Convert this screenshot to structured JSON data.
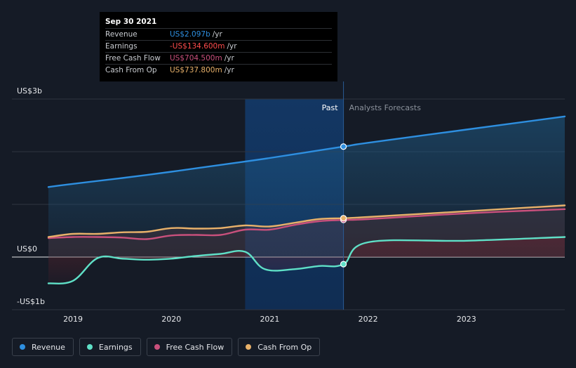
{
  "colors": {
    "revenue": "#2e8fe0",
    "earnings": "#5fe0c7",
    "free_cash_flow": "#c9507c",
    "cash_from_op": "#e8b16a"
  },
  "tooltip": {
    "date": "Sep 30 2021",
    "rows": [
      {
        "label": "Revenue",
        "value": "US$2.097b",
        "unit": "/yr"
      },
      {
        "label": "Earnings",
        "value": "-US$134.600m",
        "unit": "/yr"
      },
      {
        "label": "Free Cash Flow",
        "value": "US$704.500m",
        "unit": "/yr"
      },
      {
        "label": "Cash From Op",
        "value": "US$737.800m",
        "unit": "/yr"
      }
    ]
  },
  "legend": [
    {
      "label": "Revenue"
    },
    {
      "label": "Earnings"
    },
    {
      "label": "Free Cash Flow"
    },
    {
      "label": "Cash From Op"
    }
  ],
  "chart_data": {
    "type": "line",
    "ylim": [
      -1.0,
      3.0
    ],
    "xlim": [
      2018.6,
      2024.0
    ],
    "y_ticks": [
      {
        "value": 3.0,
        "label": "US$3b"
      },
      {
        "value": 0.0,
        "label": "US$0"
      },
      {
        "value": -1.0,
        "label": "-US$1b"
      }
    ],
    "x_ticks": [
      {
        "value": 2019.0,
        "label": "2019"
      },
      {
        "value": 2020.0,
        "label": "2020"
      },
      {
        "value": 2021.0,
        "label": "2021"
      },
      {
        "value": 2022.0,
        "label": "2022"
      },
      {
        "value": 2023.0,
        "label": "2023"
      }
    ],
    "grid_values": [
      3.0,
      2.0,
      1.0,
      0.0,
      -1.0
    ],
    "highlight_range": [
      2020.75,
      2021.75
    ],
    "divider_x": 2021.75,
    "past_label": "Past",
    "forecast_label": "Analysts Forecasts",
    "series": [
      {
        "name": "Revenue",
        "key": "revenue",
        "past": [
          [
            2018.75,
            1.33
          ],
          [
            2019.0,
            1.39
          ],
          [
            2019.5,
            1.5
          ],
          [
            2020.0,
            1.62
          ],
          [
            2020.5,
            1.75
          ],
          [
            2021.0,
            1.88
          ],
          [
            2021.75,
            2.097
          ]
        ],
        "forecast": [
          [
            2021.75,
            2.097
          ],
          [
            2022.0,
            2.17
          ],
          [
            2023.0,
            2.42
          ],
          [
            2024.0,
            2.67
          ]
        ]
      },
      {
        "name": "Free Cash Flow",
        "key": "free_cash_flow",
        "past": [
          [
            2018.75,
            0.36
          ],
          [
            2019.0,
            0.38
          ],
          [
            2019.25,
            0.38
          ],
          [
            2019.5,
            0.37
          ],
          [
            2019.75,
            0.34
          ],
          [
            2020.0,
            0.41
          ],
          [
            2020.25,
            0.42
          ],
          [
            2020.5,
            0.42
          ],
          [
            2020.75,
            0.52
          ],
          [
            2021.0,
            0.52
          ],
          [
            2021.25,
            0.61
          ],
          [
            2021.5,
            0.68
          ],
          [
            2021.75,
            0.7045
          ]
        ],
        "forecast": [
          [
            2021.75,
            0.7045
          ],
          [
            2022.0,
            0.72
          ],
          [
            2023.0,
            0.83
          ],
          [
            2024.0,
            0.91
          ]
        ]
      },
      {
        "name": "Cash From Op",
        "key": "cash_from_op",
        "past": [
          [
            2018.75,
            0.38
          ],
          [
            2019.0,
            0.44
          ],
          [
            2019.25,
            0.44
          ],
          [
            2019.5,
            0.47
          ],
          [
            2019.75,
            0.48
          ],
          [
            2020.0,
            0.55
          ],
          [
            2020.25,
            0.54
          ],
          [
            2020.5,
            0.55
          ],
          [
            2020.75,
            0.6
          ],
          [
            2021.0,
            0.58
          ],
          [
            2021.25,
            0.65
          ],
          [
            2021.5,
            0.72
          ],
          [
            2021.75,
            0.7378
          ]
        ],
        "forecast": [
          [
            2021.75,
            0.7378
          ],
          [
            2022.0,
            0.76
          ],
          [
            2023.0,
            0.87
          ],
          [
            2024.0,
            0.98
          ]
        ]
      },
      {
        "name": "Earnings",
        "key": "earnings",
        "past": [
          [
            2018.75,
            -0.5
          ],
          [
            2019.0,
            -0.45
          ],
          [
            2019.25,
            -0.02
          ],
          [
            2019.5,
            -0.03
          ],
          [
            2019.75,
            -0.05
          ],
          [
            2020.0,
            -0.03
          ],
          [
            2020.25,
            0.02
          ],
          [
            2020.5,
            0.06
          ],
          [
            2020.75,
            0.1
          ],
          [
            2020.95,
            -0.23
          ],
          [
            2021.25,
            -0.23
          ],
          [
            2021.5,
            -0.17
          ],
          [
            2021.75,
            -0.1346
          ]
        ],
        "forecast": [
          [
            2021.75,
            -0.1346
          ],
          [
            2022.0,
            0.28
          ],
          [
            2023.0,
            0.31
          ],
          [
            2024.0,
            0.38
          ]
        ]
      }
    ]
  }
}
